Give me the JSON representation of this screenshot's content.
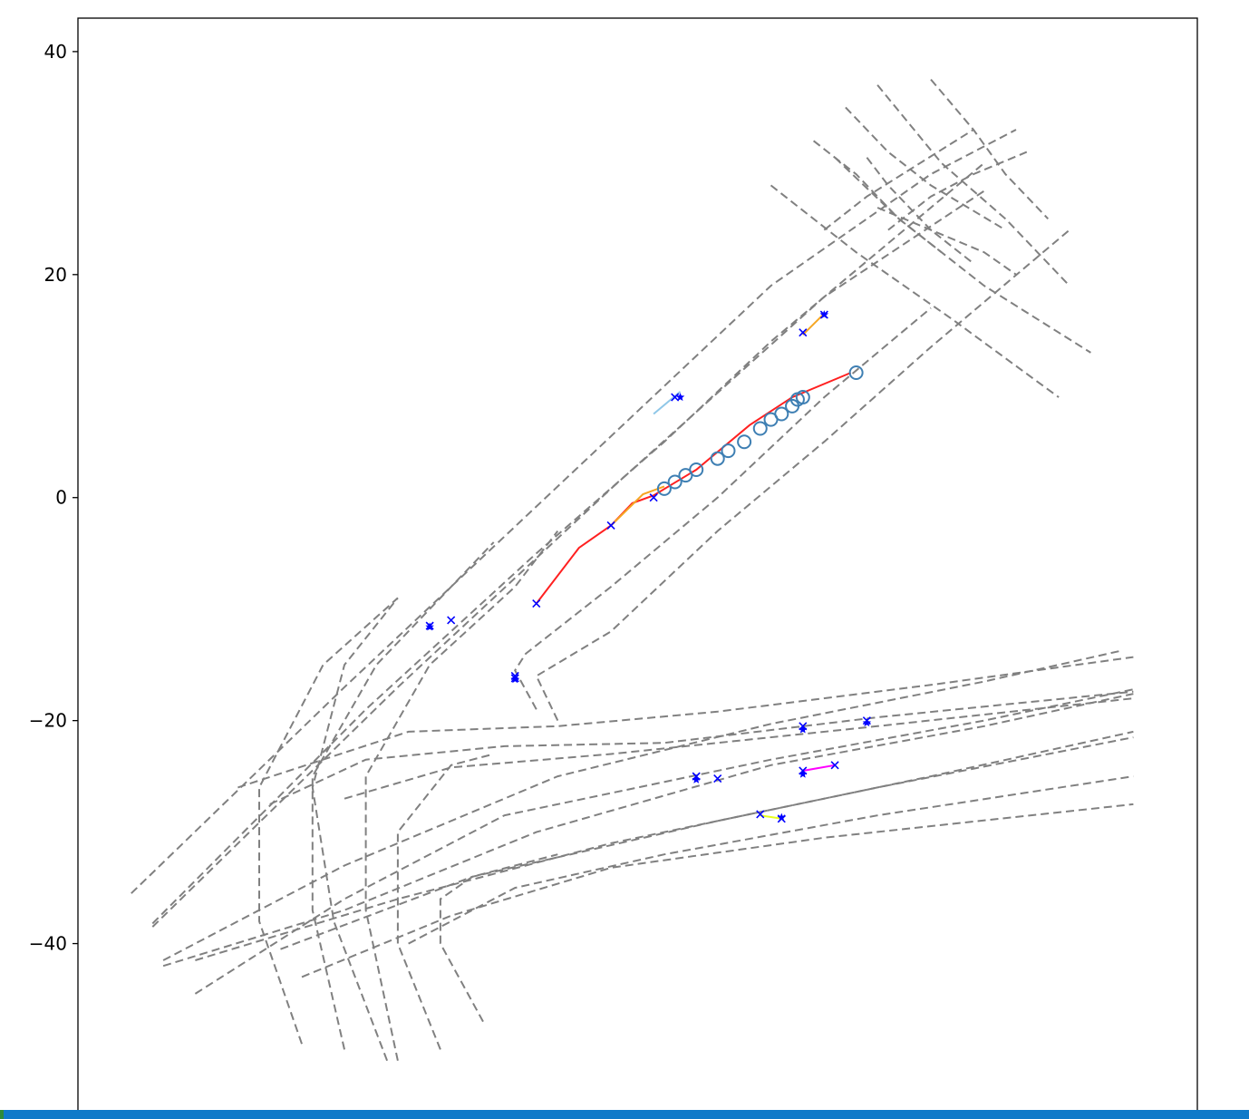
{
  "chart_data": {
    "type": "line",
    "title": "",
    "xlabel": "",
    "ylabel": "",
    "xticks_visible": false,
    "xlim": [
      -55,
      50
    ],
    "ylim": [
      -55,
      43
    ],
    "yticks": [
      40,
      20,
      0,
      -20,
      -40
    ],
    "ytick_labels": [
      "40",
      "20",
      "0",
      "−20",
      "−40"
    ],
    "grid": false,
    "legend": "none",
    "lane_color": "#808080",
    "lane_style": "dashed",
    "lanes": [
      [
        [
          -50,
          -35.5
        ],
        [
          -30,
          -17
        ],
        [
          -10,
          1
        ],
        [
          10,
          19
        ],
        [
          25,
          29
        ],
        [
          33,
          33
        ]
      ],
      [
        [
          -48,
          -38.5
        ],
        [
          -25,
          -17
        ],
        [
          -5,
          0.8
        ],
        [
          15,
          18
        ],
        [
          30,
          27.5
        ]
      ],
      [
        [
          -48,
          -38.2
        ],
        [
          -28,
          -19
        ],
        [
          -12,
          -5
        ],
        [
          0,
          5
        ],
        [
          10,
          14
        ],
        [
          20,
          22
        ],
        [
          30,
          30
        ]
      ],
      [
        [
          -47,
          -41.5
        ],
        [
          -30,
          -33
        ],
        [
          -10,
          -25
        ],
        [
          10,
          -20.3
        ],
        [
          30,
          -16.5
        ],
        [
          43,
          -13.7
        ]
      ],
      [
        [
          -44,
          -44.5
        ],
        [
          -30,
          -36
        ],
        [
          -15,
          -28.5
        ],
        [
          10,
          -23.5
        ],
        [
          30,
          -20
        ],
        [
          44,
          -17.2
        ]
      ],
      [
        [
          -47,
          -42
        ],
        [
          -30,
          -37
        ],
        [
          -12,
          -30
        ],
        [
          10,
          -24
        ],
        [
          30,
          -20.5
        ],
        [
          44,
          -17.6
        ]
      ],
      [
        [
          -44,
          -41.5
        ],
        [
          -25,
          -36
        ],
        [
          -5,
          -31
        ],
        [
          20,
          -26
        ],
        [
          44,
          -21.5
        ]
      ],
      [
        [
          -36,
          -40.5
        ],
        [
          -18,
          -34
        ],
        [
          5,
          -29
        ],
        [
          25,
          -25
        ],
        [
          44,
          -21
        ]
      ],
      [
        [
          -34,
          -43
        ],
        [
          -20,
          -37.5
        ],
        [
          -5,
          -33.2
        ],
        [
          15,
          -30.5
        ],
        [
          44,
          -27.5
        ]
      ],
      [
        [
          -24,
          -40
        ],
        [
          -14,
          -35
        ],
        [
          0,
          -32
        ],
        [
          20,
          -28.5
        ],
        [
          44,
          -25
        ]
      ],
      [
        [
          -30,
          -27
        ],
        [
          -20,
          -24.2
        ],
        [
          -5,
          -23
        ],
        [
          20,
          -20.5
        ],
        [
          44,
          -18
        ]
      ],
      [
        [
          -37,
          -27.5
        ],
        [
          -28,
          -23.5
        ],
        [
          -15,
          -22.3
        ],
        [
          0,
          -22
        ],
        [
          20,
          -19.7
        ],
        [
          44,
          -17.4
        ]
      ],
      [
        [
          -40,
          -26
        ],
        [
          -24,
          -21
        ],
        [
          -10,
          -20.5
        ],
        [
          5,
          -19.2
        ],
        [
          25,
          -16.8
        ],
        [
          44,
          -14.3
        ]
      ],
      [
        [
          -30,
          -49.5
        ],
        [
          -33,
          -37
        ],
        [
          -33,
          -25
        ],
        [
          -27,
          -15
        ],
        [
          -16,
          -4
        ]
      ],
      [
        [
          -25,
          -50.5
        ],
        [
          -28,
          -37
        ],
        [
          -28,
          -25
        ],
        [
          -22,
          -15
        ],
        [
          -14,
          -8
        ],
        [
          -10,
          -3
        ]
      ],
      [
        [
          -26,
          -50.5
        ],
        [
          -31,
          -38
        ],
        [
          -33,
          -26
        ],
        [
          -30,
          -15
        ],
        [
          -25,
          -9
        ]
      ],
      [
        [
          -34,
          -49
        ],
        [
          -38,
          -38
        ],
        [
          -38,
          -26
        ],
        [
          -32,
          -15
        ],
        [
          -25,
          -9
        ]
      ],
      [
        [
          -21,
          -49.5
        ],
        [
          -25,
          -40
        ],
        [
          -25,
          -30
        ],
        [
          -20,
          -24
        ],
        [
          -16,
          -23
        ]
      ],
      [
        [
          -17,
          -47
        ],
        [
          -21,
          -40
        ],
        [
          -21,
          -36
        ],
        [
          -18,
          -34
        ],
        [
          -10,
          -32
        ]
      ],
      [
        [
          -12,
          -19
        ],
        [
          -14,
          -15.5
        ],
        [
          -13,
          -14
        ],
        [
          -5,
          -8
        ],
        [
          5,
          0
        ],
        [
          15,
          9
        ],
        [
          25,
          17
        ]
      ],
      [
        [
          -10,
          -20
        ],
        [
          -12,
          -16
        ],
        [
          -5,
          -12
        ],
        [
          5,
          -3
        ],
        [
          15,
          5
        ],
        [
          25,
          13.5
        ],
        [
          38,
          24
        ]
      ],
      [
        [
          10,
          28
        ],
        [
          18,
          22
        ],
        [
          27,
          16
        ],
        [
          37,
          9
        ]
      ],
      [
        [
          16,
          30.5
        ],
        [
          22,
          25
        ],
        [
          30,
          19
        ],
        [
          40,
          13
        ]
      ],
      [
        [
          20,
          37
        ],
        [
          26,
          30
        ],
        [
          32,
          25
        ],
        [
          38,
          19
        ]
      ],
      [
        [
          25,
          37.5
        ],
        [
          29,
          33
        ],
        [
          32,
          29
        ],
        [
          36,
          25
        ]
      ],
      [
        [
          19,
          30.5
        ],
        [
          21,
          28
        ],
        [
          25,
          24
        ],
        [
          29,
          21
        ]
      ],
      [
        [
          17,
          35
        ],
        [
          21,
          31
        ],
        [
          25,
          28
        ],
        [
          32,
          24
        ]
      ],
      [
        [
          14,
          32
        ],
        [
          18,
          29
        ],
        [
          22,
          25
        ],
        [
          26,
          22
        ]
      ],
      [
        [
          15,
          24
        ],
        [
          19,
          27
        ],
        [
          24,
          30
        ],
        [
          29,
          33
        ]
      ],
      [
        [
          21,
          24
        ],
        [
          25,
          27
        ],
        [
          29,
          29
        ],
        [
          34,
          31
        ]
      ],
      [
        [
          20,
          26
        ],
        [
          25,
          24
        ],
        [
          30,
          22
        ],
        [
          33,
          20
        ]
      ]
    ],
    "series": [
      {
        "color": "#ff2020",
        "values": [
          [
            -12,
            -9.5
          ],
          [
            -8,
            -4.5
          ],
          [
            -5,
            -2.5
          ],
          [
            -3,
            -0.5
          ],
          [
            -1,
            0.2
          ],
          [
            3,
            2.5
          ],
          [
            8,
            6.5
          ],
          [
            12,
            9
          ],
          [
            17,
            11
          ],
          [
            17.5,
            11.2
          ]
        ]
      },
      {
        "color": "#f5a623",
        "values": [
          [
            -5,
            -2.5
          ],
          [
            -2,
            0.3
          ],
          [
            0,
            1
          ]
        ]
      },
      {
        "color": "#f5a623",
        "values": [
          [
            13,
            14.6
          ],
          [
            15,
            16.5
          ]
        ]
      },
      {
        "color": "#8fc7e8",
        "values": [
          [
            -1,
            7.5
          ],
          [
            1.5,
            9.5
          ]
        ]
      },
      {
        "color": "#ff00ff",
        "values": [
          [
            13,
            -24.5
          ],
          [
            16,
            -24
          ]
        ]
      },
      {
        "color": "#e8ff1f",
        "values": [
          [
            9,
            -28.5
          ],
          [
            11,
            -28.8
          ]
        ]
      }
    ],
    "markers_x": [
      [
        -12,
        -9.5
      ],
      [
        -5,
        -2.5
      ],
      [
        -1,
        0
      ],
      [
        1,
        9
      ],
      [
        13,
        14.8
      ],
      [
        15,
        16.4
      ],
      [
        -22,
        -11.5
      ],
      [
        -14,
        -16
      ],
      [
        13,
        -20.5
      ],
      [
        19,
        -20
      ],
      [
        3,
        -25
      ],
      [
        5,
        -25.2
      ],
      [
        13,
        -24.5
      ],
      [
        16,
        -24
      ],
      [
        9,
        -28.4
      ],
      [
        11,
        -28.8
      ],
      [
        -20,
        -11
      ],
      [
        -14,
        -16.2
      ]
    ],
    "markers_star": [
      [
        15,
        16.4
      ],
      [
        1.5,
        9
      ],
      [
        -22,
        -11.6
      ],
      [
        -14,
        -16.3
      ],
      [
        13,
        -20.8
      ],
      [
        19,
        -20.2
      ],
      [
        3,
        -25.3
      ],
      [
        13,
        -24.8
      ],
      [
        11,
        -28.7
      ]
    ],
    "circles": [
      [
        0,
        0.8
      ],
      [
        1,
        1.4
      ],
      [
        2,
        2
      ],
      [
        3,
        2.5
      ],
      [
        5,
        3.5
      ],
      [
        6,
        4.2
      ],
      [
        7.5,
        5
      ],
      [
        9,
        6.2
      ],
      [
        10,
        7
      ],
      [
        11,
        7.5
      ],
      [
        12,
        8.2
      ],
      [
        12.5,
        8.8
      ],
      [
        13,
        9
      ],
      [
        18,
        11.2
      ]
    ],
    "marker_color": "#0000ff",
    "circle_color": "#3e7fb3"
  }
}
